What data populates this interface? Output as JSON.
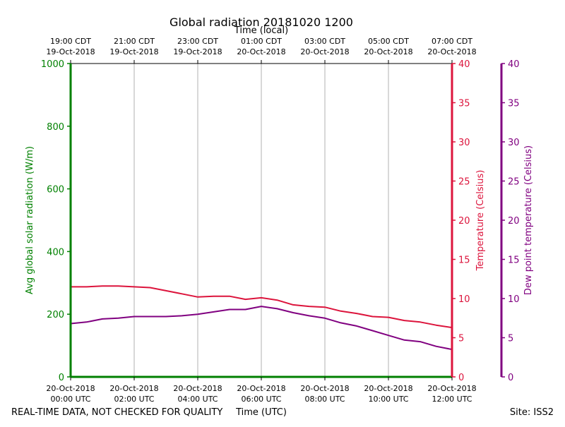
{
  "chart_data": {
    "type": "line",
    "title": "Global radiation 20181020 1200",
    "top_axis_label": "Time (local)",
    "xlabel": "Time (UTC)",
    "x_hours": [
      0,
      12
    ],
    "bottom_ticks": [
      {
        "hour": 0,
        "line1": "20-Oct-2018",
        "line2": "00:00 UTC"
      },
      {
        "hour": 2,
        "line1": "20-Oct-2018",
        "line2": "02:00 UTC"
      },
      {
        "hour": 4,
        "line1": "20-Oct-2018",
        "line2": "04:00 UTC"
      },
      {
        "hour": 6,
        "line1": "20-Oct-2018",
        "line2": "06:00 UTC"
      },
      {
        "hour": 8,
        "line1": "20-Oct-2018",
        "line2": "08:00 UTC"
      },
      {
        "hour": 10,
        "line1": "20-Oct-2018",
        "line2": "10:00 UTC"
      },
      {
        "hour": 12,
        "line1": "20-Oct-2018",
        "line2": "12:00 UTC"
      }
    ],
    "top_ticks": [
      {
        "hour": 0,
        "line1": "19:00 CDT",
        "line2": "19-Oct-2018"
      },
      {
        "hour": 2,
        "line1": "21:00 CDT",
        "line2": "19-Oct-2018"
      },
      {
        "hour": 4,
        "line1": "23:00 CDT",
        "line2": "19-Oct-2018"
      },
      {
        "hour": 6,
        "line1": "01:00 CDT",
        "line2": "20-Oct-2018"
      },
      {
        "hour": 8,
        "line1": "03:00 CDT",
        "line2": "20-Oct-2018"
      },
      {
        "hour": 10,
        "line1": "05:00 CDT",
        "line2": "20-Oct-2018"
      },
      {
        "hour": 12,
        "line1": "07:00 CDT",
        "line2": "20-Oct-2018"
      }
    ],
    "y_left": {
      "label": "Avg global solar radiation (W/m)",
      "range": [
        0,
        1000
      ],
      "ticks": [
        0,
        200,
        400,
        600,
        800,
        1000
      ],
      "color": "#008000"
    },
    "y_temp": {
      "label": "Temperature (Celsius)",
      "range": [
        0,
        40
      ],
      "ticks": [
        0,
        5,
        10,
        15,
        20,
        25,
        30,
        35,
        40
      ],
      "color": "#dc143c"
    },
    "y_dew": {
      "label": "Dew point temperature (Celsius)",
      "range": [
        0,
        40
      ],
      "ticks": [
        0,
        5,
        10,
        15,
        20,
        25,
        30,
        35,
        40
      ],
      "color": "#800080"
    },
    "series": [
      {
        "name": "Temperature",
        "axis": "y_temp",
        "color": "#dc143c",
        "x": [
          0,
          0.5,
          1,
          1.5,
          2,
          2.5,
          3,
          3.5,
          4,
          4.5,
          5,
          5.5,
          6,
          6.5,
          7,
          7.5,
          8,
          8.5,
          9,
          9.5,
          10,
          10.5,
          11,
          11.5,
          12
        ],
        "values": [
          11.5,
          11.5,
          11.6,
          11.6,
          11.5,
          11.4,
          11.0,
          10.6,
          10.2,
          10.3,
          10.3,
          9.9,
          10.1,
          9.8,
          9.2,
          9.0,
          8.9,
          8.4,
          8.1,
          7.7,
          7.6,
          7.2,
          7.0,
          6.6,
          6.3
        ]
      },
      {
        "name": "Dew point",
        "axis": "y_dew",
        "color": "#800080",
        "x": [
          0,
          0.5,
          1,
          1.5,
          2,
          2.5,
          3,
          3.5,
          4,
          4.5,
          5,
          5.5,
          6,
          6.5,
          7,
          7.5,
          8,
          8.5,
          9,
          9.5,
          10,
          10.5,
          11,
          11.5,
          12
        ],
        "values": [
          6.8,
          7.0,
          7.4,
          7.5,
          7.7,
          7.7,
          7.7,
          7.8,
          8.0,
          8.3,
          8.6,
          8.6,
          9.0,
          8.7,
          8.2,
          7.8,
          7.5,
          6.9,
          6.5,
          5.9,
          5.3,
          4.7,
          4.5,
          3.9,
          3.5
        ]
      },
      {
        "name": "Avg global solar radiation",
        "axis": "y_left",
        "color": "#008000",
        "x": [
          0,
          12
        ],
        "values": [
          0,
          0
        ]
      }
    ]
  },
  "footer": {
    "left": "REAL-TIME DATA, NOT CHECKED FOR QUALITY",
    "right": "Site: ISS2"
  }
}
